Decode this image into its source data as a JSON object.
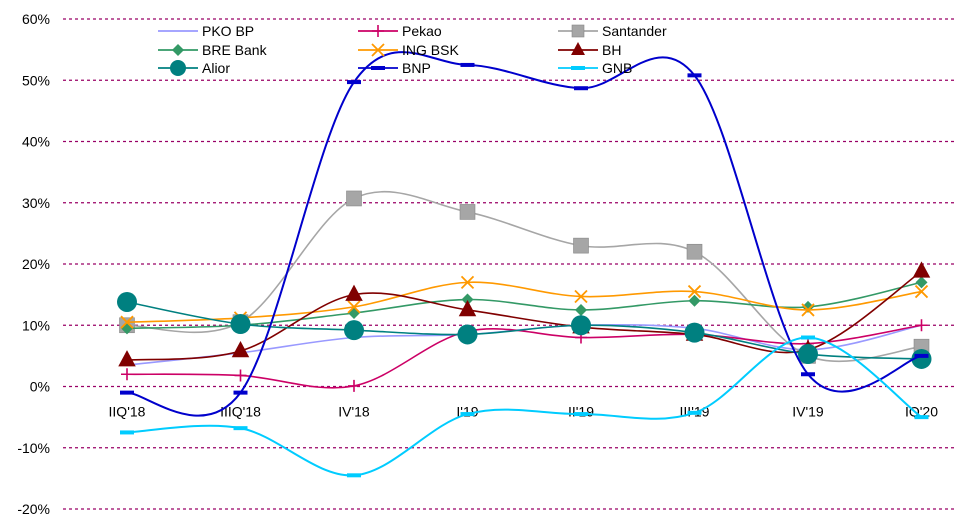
{
  "chart_data": {
    "type": "line",
    "title": "",
    "xlabel": "",
    "ylabel": "",
    "ylim": [
      -20,
      60
    ],
    "yticks": [
      -20,
      -10,
      0,
      10,
      20,
      30,
      40,
      50,
      60
    ],
    "ytick_labels": [
      "-20%",
      "-10%",
      "0%",
      "10%",
      "20%",
      "30%",
      "40%",
      "50%",
      "60%"
    ],
    "categories": [
      "IIQ'18",
      "IIIQ'18",
      "IV'18",
      "I'19",
      "II'19",
      "III'19",
      "IV'19",
      "IQ'20"
    ],
    "grid": "horizontal dashed",
    "legend_position": "top",
    "series": [
      {
        "name": "PKO BP",
        "color": "#9999ff",
        "marker": "none",
        "values": [
          3.5,
          5.5,
          8.0,
          8.5,
          10.0,
          9.5,
          6.0,
          10.0
        ]
      },
      {
        "name": "Pekao",
        "color": "#cc0066",
        "marker": "plus",
        "values": [
          2.0,
          1.8,
          0.1,
          9.0,
          8.0,
          8.5,
          7.0,
          10.0
        ]
      },
      {
        "name": "Santander",
        "color": "#a6a6a6",
        "marker": "square",
        "values": [
          10.0,
          10.5,
          30.7,
          28.5,
          23.0,
          22.0,
          5.0,
          6.5
        ]
      },
      {
        "name": "BRE Bank",
        "color": "#339966",
        "marker": "diamond",
        "values": [
          9.5,
          10.0,
          12.0,
          14.2,
          12.5,
          14.0,
          13.0,
          17.0
        ]
      },
      {
        "name": "ING BSK",
        "color": "#ff9900",
        "marker": "x",
        "values": [
          10.5,
          11.2,
          13.0,
          17.0,
          14.7,
          15.5,
          12.5,
          15.5
        ]
      },
      {
        "name": "BH",
        "color": "#800000",
        "marker": "triangle",
        "values": [
          4.3,
          5.8,
          15.0,
          12.5,
          9.7,
          8.5,
          6.0,
          18.8
        ]
      },
      {
        "name": "Alior",
        "color": "#008080",
        "marker": "circle",
        "values": [
          13.8,
          10.2,
          9.2,
          8.5,
          10.0,
          8.8,
          5.3,
          4.5
        ]
      },
      {
        "name": "BNP",
        "color": "#0000cc",
        "marker": "dash",
        "values": [
          -1.0,
          -1.0,
          49.7,
          52.5,
          48.7,
          50.8,
          2.0,
          5.0
        ]
      },
      {
        "name": "GNB",
        "color": "#00ccff",
        "marker": "dash",
        "values": [
          -7.5,
          -6.8,
          -14.5,
          -4.5,
          -4.5,
          -4.3,
          8.0,
          -5.0
        ]
      }
    ]
  }
}
